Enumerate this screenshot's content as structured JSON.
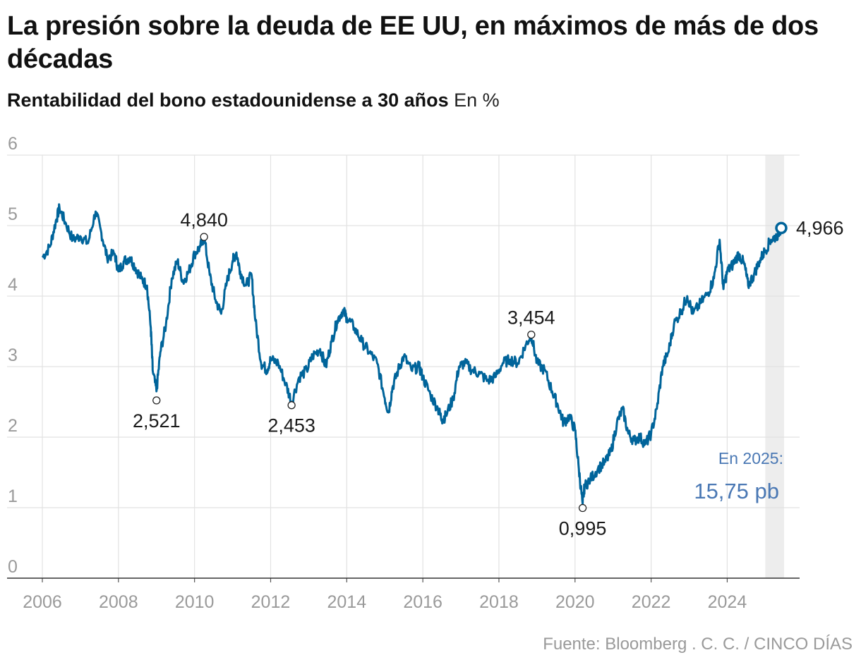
{
  "chart_data": {
    "type": "line",
    "title": "La presión sobre la deuda de EE UU, en máximos de más de dos décadas",
    "subtitle": "Rentabilidad del bono estadounidense a 30 años",
    "unit": "En %",
    "ylim": [
      0,
      6
    ],
    "y_ticks": [
      "0",
      "1",
      "2",
      "3",
      "4",
      "5",
      "6"
    ],
    "xlim": [
      2006,
      2025.7
    ],
    "x_ticks": [
      "2006",
      "2008",
      "2010",
      "2012",
      "2014",
      "2016",
      "2018",
      "2020",
      "2022",
      "2024"
    ],
    "grid": true,
    "highlight_range": [
      2025.0,
      2025.42
    ],
    "series": [
      {
        "name": "Rentabilidad del bono a 30 años",
        "color": "#00649a",
        "x": [
          2006.0,
          2006.2,
          2006.35,
          2006.45,
          2006.6,
          2006.8,
          2007.0,
          2007.2,
          2007.4,
          2007.55,
          2007.7,
          2007.9,
          2008.0,
          2008.15,
          2008.3,
          2008.45,
          2008.6,
          2008.75,
          2008.85,
          2008.9,
          2009.0,
          2009.1,
          2009.25,
          2009.4,
          2009.55,
          2009.7,
          2009.85,
          2010.0,
          2010.15,
          2010.25,
          2010.4,
          2010.55,
          2010.7,
          2010.85,
          2011.0,
          2011.1,
          2011.2,
          2011.35,
          2011.5,
          2011.6,
          2011.75,
          2011.9,
          2012.0,
          2012.2,
          2012.4,
          2012.55,
          2012.75,
          2012.95,
          2013.1,
          2013.3,
          2013.45,
          2013.6,
          2013.75,
          2013.9,
          2014.0,
          2014.2,
          2014.4,
          2014.6,
          2014.8,
          2015.0,
          2015.1,
          2015.2,
          2015.35,
          2015.5,
          2015.7,
          2015.9,
          2016.0,
          2016.2,
          2016.4,
          2016.5,
          2016.6,
          2016.8,
          2016.95,
          2017.1,
          2017.3,
          2017.5,
          2017.7,
          2017.9,
          2018.1,
          2018.3,
          2018.5,
          2018.7,
          2018.85,
          2019.0,
          2019.2,
          2019.4,
          2019.55,
          2019.7,
          2019.85,
          2020.0,
          2020.1,
          2020.2,
          2020.25,
          2020.4,
          2020.6,
          2020.8,
          2020.95,
          2021.1,
          2021.25,
          2021.4,
          2021.55,
          2021.7,
          2021.85,
          2022.0,
          2022.15,
          2022.3,
          2022.45,
          2022.6,
          2022.8,
          2022.95,
          2023.1,
          2023.3,
          2023.5,
          2023.65,
          2023.8,
          2023.9,
          2024.0,
          2024.15,
          2024.3,
          2024.45,
          2024.55,
          2024.7,
          2024.85,
          2025.0,
          2025.15,
          2025.3,
          2025.42
        ],
        "values": [
          4.55,
          4.7,
          5.05,
          5.25,
          5.05,
          4.8,
          4.85,
          4.75,
          5.2,
          4.9,
          4.55,
          4.6,
          4.35,
          4.5,
          4.55,
          4.4,
          4.25,
          4.15,
          3.55,
          2.95,
          2.65,
          3.2,
          3.6,
          4.25,
          4.5,
          4.2,
          4.35,
          4.6,
          4.7,
          4.84,
          4.3,
          3.95,
          3.75,
          4.2,
          4.5,
          4.62,
          4.35,
          4.15,
          4.3,
          3.65,
          3.05,
          2.95,
          3.1,
          3.05,
          2.75,
          2.5,
          2.85,
          2.95,
          3.15,
          3.25,
          3.0,
          3.35,
          3.65,
          3.8,
          3.7,
          3.55,
          3.35,
          3.2,
          3.05,
          2.55,
          2.35,
          2.7,
          2.95,
          3.15,
          2.95,
          3.0,
          2.85,
          2.6,
          2.4,
          2.25,
          2.3,
          2.55,
          3.0,
          3.05,
          2.95,
          2.9,
          2.8,
          2.85,
          3.05,
          3.1,
          3.05,
          3.3,
          3.45,
          3.05,
          2.95,
          2.65,
          2.45,
          2.2,
          2.3,
          2.1,
          1.55,
          1.05,
          1.3,
          1.4,
          1.55,
          1.65,
          1.8,
          2.2,
          2.4,
          2.05,
          1.95,
          2.0,
          1.9,
          2.05,
          2.4,
          3.0,
          3.2,
          3.6,
          3.8,
          4.0,
          3.75,
          3.9,
          4.05,
          4.25,
          4.8,
          4.1,
          4.35,
          4.45,
          4.6,
          4.45,
          4.15,
          4.3,
          4.5,
          4.65,
          4.8,
          4.85,
          4.966
        ]
      }
    ],
    "annotations": [
      {
        "x": 2009.0,
        "value": 2.521,
        "label": "2,521",
        "pos": "below"
      },
      {
        "x": 2010.25,
        "value": 4.84,
        "label": "4,840",
        "pos": "above"
      },
      {
        "x": 2012.55,
        "value": 2.453,
        "label": "2,453",
        "pos": "below"
      },
      {
        "x": 2018.85,
        "value": 3.454,
        "label": "3,454",
        "pos": "above"
      },
      {
        "x": 2020.2,
        "value": 0.995,
        "label": "0,995",
        "pos": "below"
      },
      {
        "x": 2025.42,
        "value": 4.966,
        "label": "4,966",
        "pos": "right",
        "final": true
      }
    ],
    "note": {
      "line1": "En 2025:",
      "line2": "15,75 pb"
    },
    "source": "Fuente: Bloomberg . C. C. / CINCO DÍAS"
  }
}
